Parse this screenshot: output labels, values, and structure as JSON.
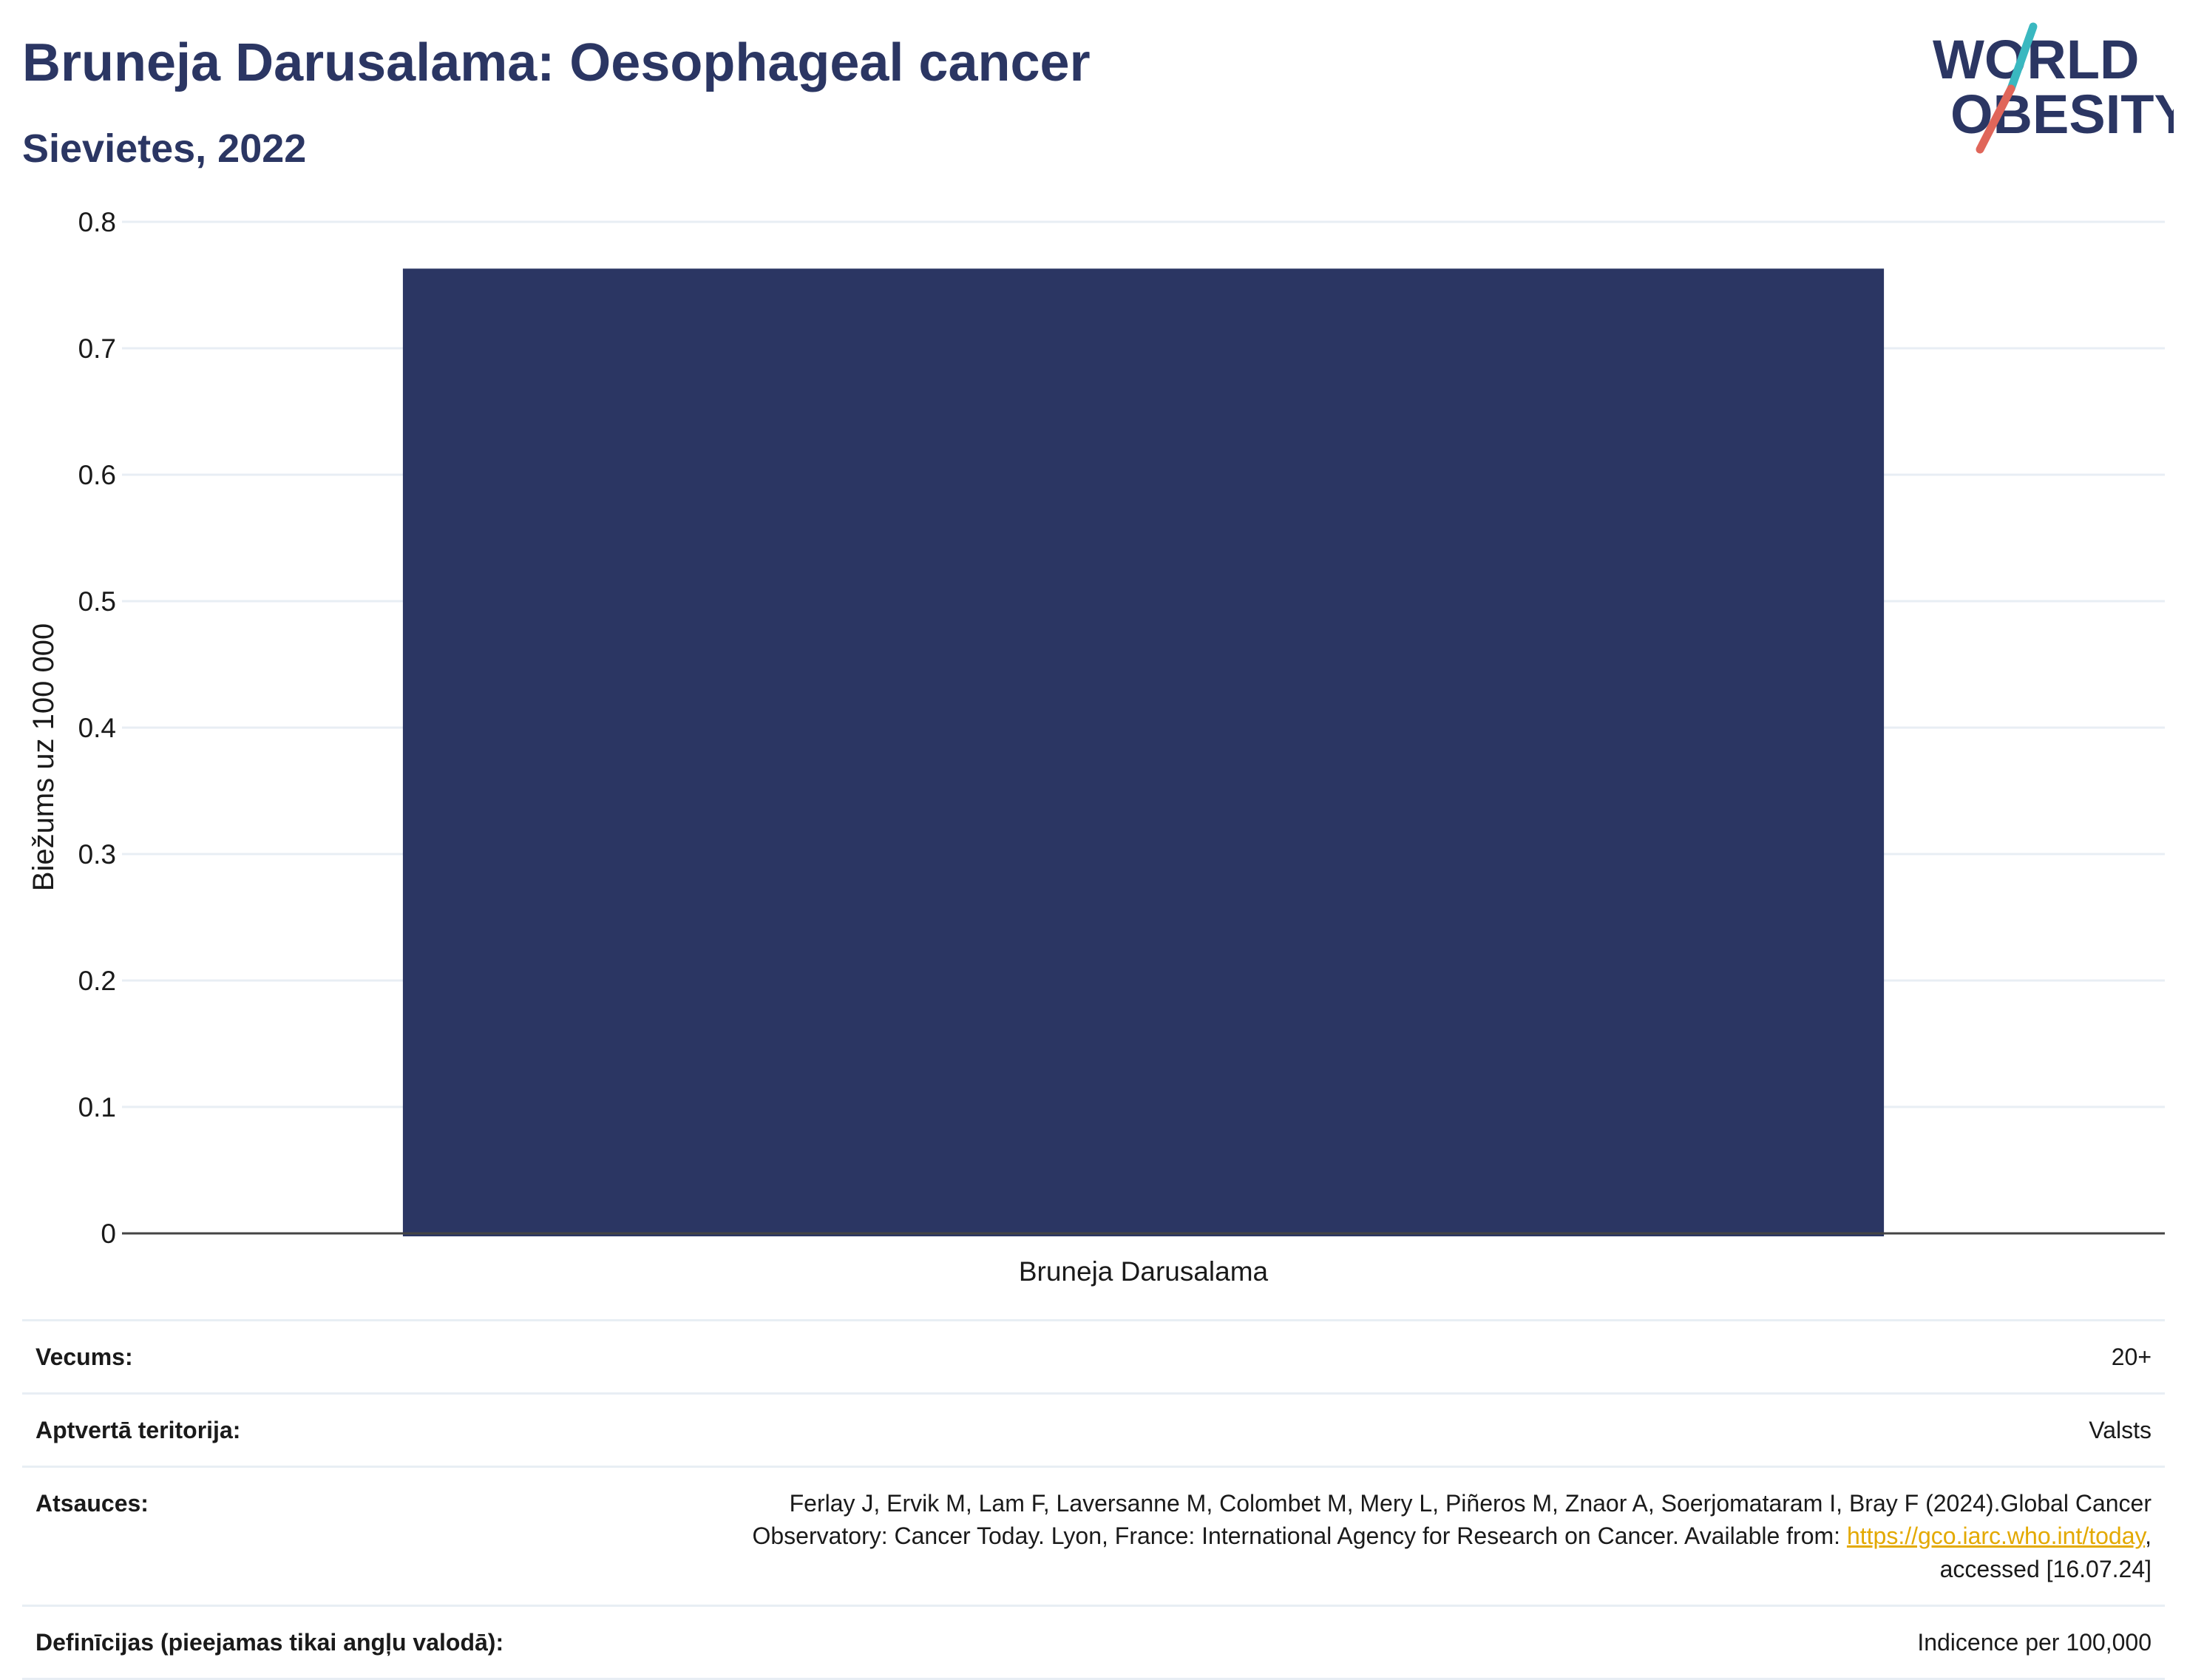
{
  "header": {
    "title": "Bruneja Darusalama: Oesophageal cancer",
    "subtitle": "Sievietes, 2022"
  },
  "logo": {
    "line1": "WORLD",
    "line2": "OBESITY",
    "colors": {
      "text": "#2b3663",
      "slash_top": "#3ab8c0",
      "slash_bottom": "#e0665a"
    }
  },
  "chart_data": {
    "type": "bar",
    "categories": [
      "Bruneja Darusalama"
    ],
    "values": [
      0.763
    ],
    "xlabel": "",
    "ylabel": "Biežums uz 100 000",
    "ylim": [
      0,
      0.8
    ],
    "yticks": [
      0,
      0.1,
      0.2,
      0.3,
      0.4,
      0.5,
      0.6,
      0.7,
      0.8
    ],
    "ytick_labels": [
      "0",
      "0.1",
      "0.2",
      "0.3",
      "0.4",
      "0.5",
      "0.6",
      "0.7",
      "0.8"
    ],
    "grid": true,
    "bar_color": "#2b3663",
    "grid_color": "#e8eef4",
    "axis_color": "#444444"
  },
  "info": {
    "age": {
      "label": "Vecums:",
      "value": "20+"
    },
    "coverage": {
      "label": "Aptvertā teritorija:",
      "value": "Valsts"
    },
    "references": {
      "label": "Atsauces:",
      "line1": "Ferlay J, Ervik M, Lam F, Laversanne M, Colombet M, Mery L, Piñeros M, Znaor A, Soerjomataram I, Bray F (2024).Global Cancer",
      "line2": "Observatory: Cancer Today. Lyon, France: International Agency for Research on Cancer. Available from: ",
      "link": "https://gco.iarc.who.int/today",
      "after_link": ",",
      "line3": "accessed [16.07.24]"
    },
    "definitions": {
      "label": "Definīcijas (pieejamas tikai angļu valodā):",
      "value": "Indicence per 100,000"
    }
  }
}
